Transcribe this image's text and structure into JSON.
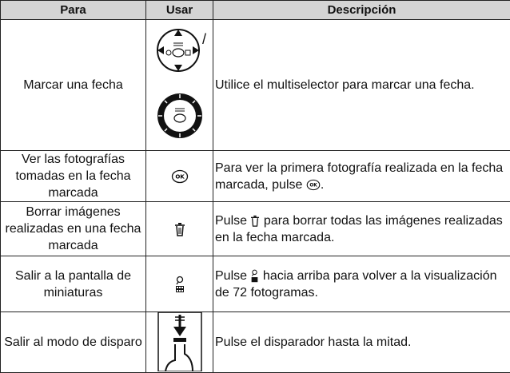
{
  "table": {
    "header": [
      "Para",
      "Usar",
      "Descripción"
    ],
    "rows": [
      {
        "para": "Marcar una fecha",
        "usar_separator": "/",
        "description": [
          "Utilice el multiselector para marcar una fecha."
        ]
      },
      {
        "para": "Ver las fotografías tomadas en la fecha marcada",
        "description": [
          "Para ver la primera fotografía realizada en la fecha marcada, pulse ",
          "."
        ]
      },
      {
        "para": "Borrar imágenes realizadas en una fecha marcada",
        "description": [
          "Pulse ",
          " para borrar todas las imágenes realizadas en la fecha marcada."
        ]
      },
      {
        "para": "Salir a la pantalla de miniaturas",
        "description": [
          "Pulse ",
          " hacia arriba para volver a la visualización de 72 fotogramas."
        ]
      },
      {
        "para": "Salir al modo de disparo",
        "description": [
          "Pulse el disparador hasta la mitad."
        ]
      }
    ],
    "icons": {
      "ok": "OK"
    }
  }
}
